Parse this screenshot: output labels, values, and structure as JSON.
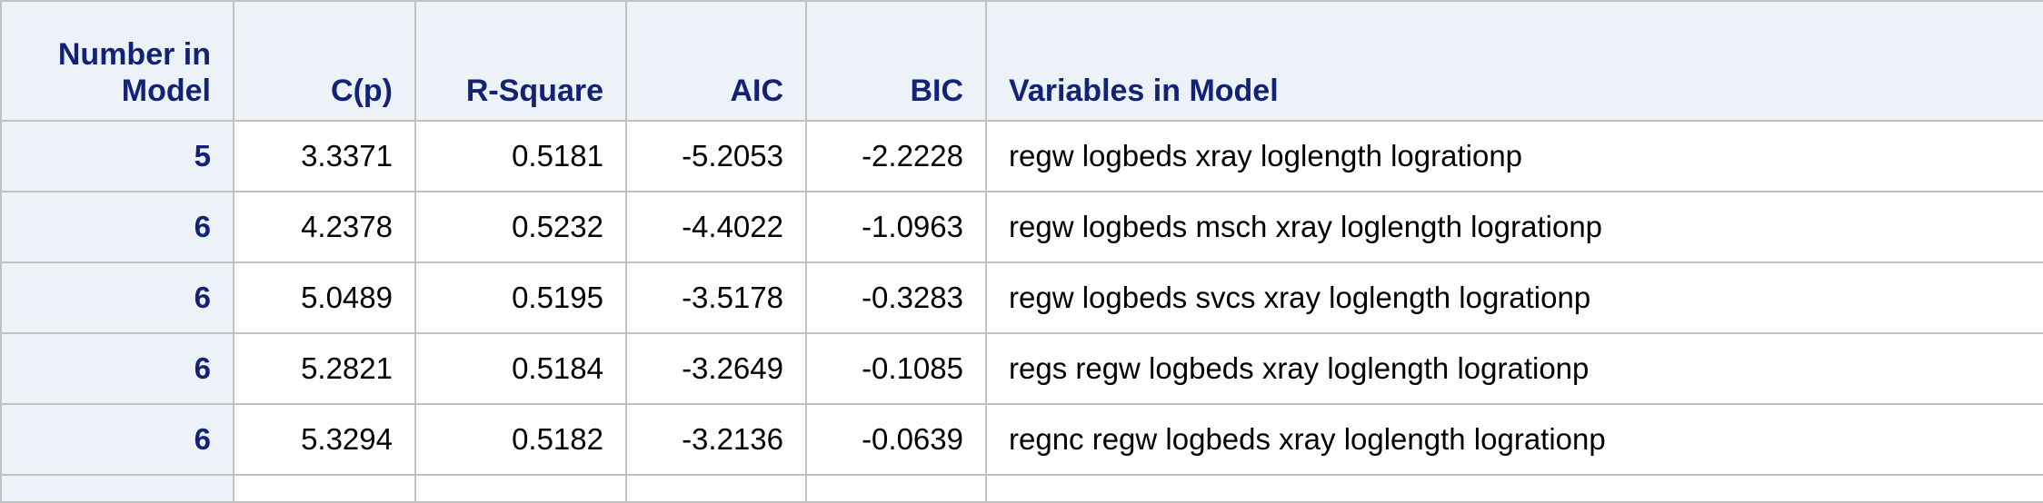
{
  "table": {
    "headers": {
      "number_line1": "Number in",
      "number_line2": "Model",
      "cp": "C(p)",
      "rsquare": "R-Square",
      "aic": "AIC",
      "bic": "BIC",
      "variables": "Variables in Model"
    },
    "rows": [
      {
        "number": "5",
        "cp": "3.3371",
        "rsquare": "0.5181",
        "aic": "-5.2053",
        "bic": "-2.2228",
        "variables": "regw logbeds xray loglength logrationp"
      },
      {
        "number": "6",
        "cp": "4.2378",
        "rsquare": "0.5232",
        "aic": "-4.4022",
        "bic": "-1.0963",
        "variables": "regw logbeds msch xray loglength logrationp"
      },
      {
        "number": "6",
        "cp": "5.0489",
        "rsquare": "0.5195",
        "aic": "-3.5178",
        "bic": "-0.3283",
        "variables": "regw logbeds svcs xray loglength logrationp"
      },
      {
        "number": "6",
        "cp": "5.2821",
        "rsquare": "0.5184",
        "aic": "-3.2649",
        "bic": "-0.1085",
        "variables": "regs regw logbeds xray loglength logrationp"
      },
      {
        "number": "6",
        "cp": "5.3294",
        "rsquare": "0.5182",
        "aic": "-3.2136",
        "bic": "-0.0639",
        "variables": "regnc regw logbeds xray loglength logrationp"
      }
    ]
  }
}
